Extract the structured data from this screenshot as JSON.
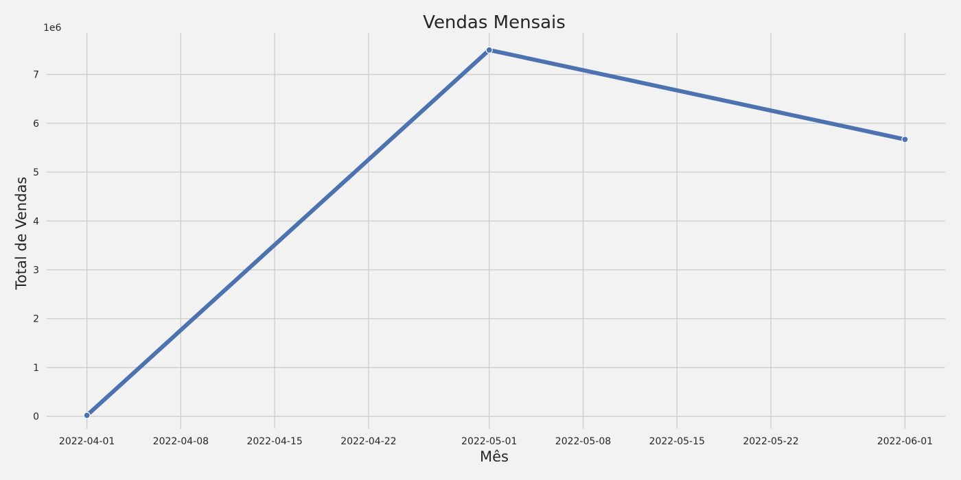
{
  "chart_data": {
    "type": "line",
    "title": "Vendas Mensais",
    "xlabel": "Mês",
    "ylabel": "Total de Vendas",
    "y_offset_label": "1e6",
    "y_scale_factor": 1000000,
    "xlim": [
      "2022-03-29",
      "2022-06-04"
    ],
    "ylim": [
      -250000,
      7850000
    ],
    "x_ticks": [
      "2022-04-01",
      "2022-04-08",
      "2022-04-15",
      "2022-04-22",
      "2022-05-01",
      "2022-05-08",
      "2022-05-15",
      "2022-05-22",
      "2022-06-01"
    ],
    "y_ticks": [
      0,
      1000000,
      2000000,
      3000000,
      4000000,
      5000000,
      6000000,
      7000000
    ],
    "y_tick_labels": [
      "0",
      "1",
      "2",
      "3",
      "4",
      "5",
      "6",
      "7"
    ],
    "grid": true,
    "series": [
      {
        "color": "#4c72b0",
        "x": [
          "2022-04-01",
          "2022-05-01",
          "2022-06-01"
        ],
        "values": [
          20000,
          7500000,
          5670000
        ]
      }
    ]
  }
}
